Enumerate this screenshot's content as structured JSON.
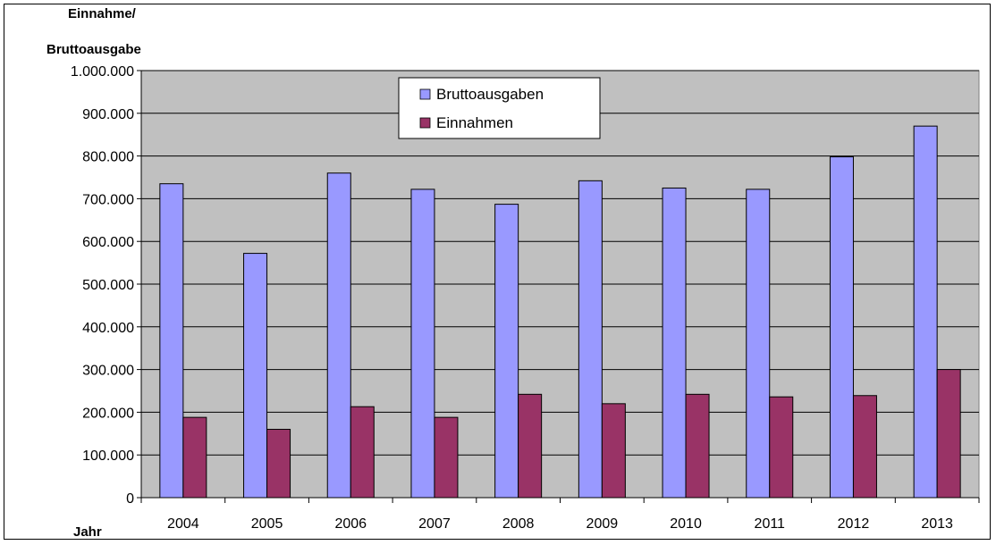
{
  "chart_data": {
    "type": "bar",
    "title": "",
    "ylabel_lines": [
      "Einnahme/",
      "Bruttoausgabe"
    ],
    "xlabel": "Jahr",
    "categories": [
      "2004",
      "2005",
      "2006",
      "2007",
      "2008",
      "2009",
      "2010",
      "2011",
      "2012",
      "2013"
    ],
    "series": [
      {
        "name": "Bruttoausgaben",
        "color": "#9999ff",
        "values": [
          735000,
          572000,
          760000,
          722000,
          687000,
          742000,
          725000,
          722000,
          798000,
          870000
        ]
      },
      {
        "name": "Einnahmen",
        "color": "#993366",
        "values": [
          188000,
          160000,
          213000,
          188000,
          242000,
          220000,
          242000,
          236000,
          239000,
          300000
        ]
      }
    ],
    "ylim": [
      0,
      1000000
    ],
    "ytick_labels": [
      "0",
      "100.000",
      "200.000",
      "300.000",
      "400.000",
      "500.000",
      "600.000",
      "700.000",
      "800.000",
      "900.000",
      "1.000.000"
    ],
    "grid": true,
    "legend_position": "top-center",
    "plot_background": "#c0c0c0"
  }
}
